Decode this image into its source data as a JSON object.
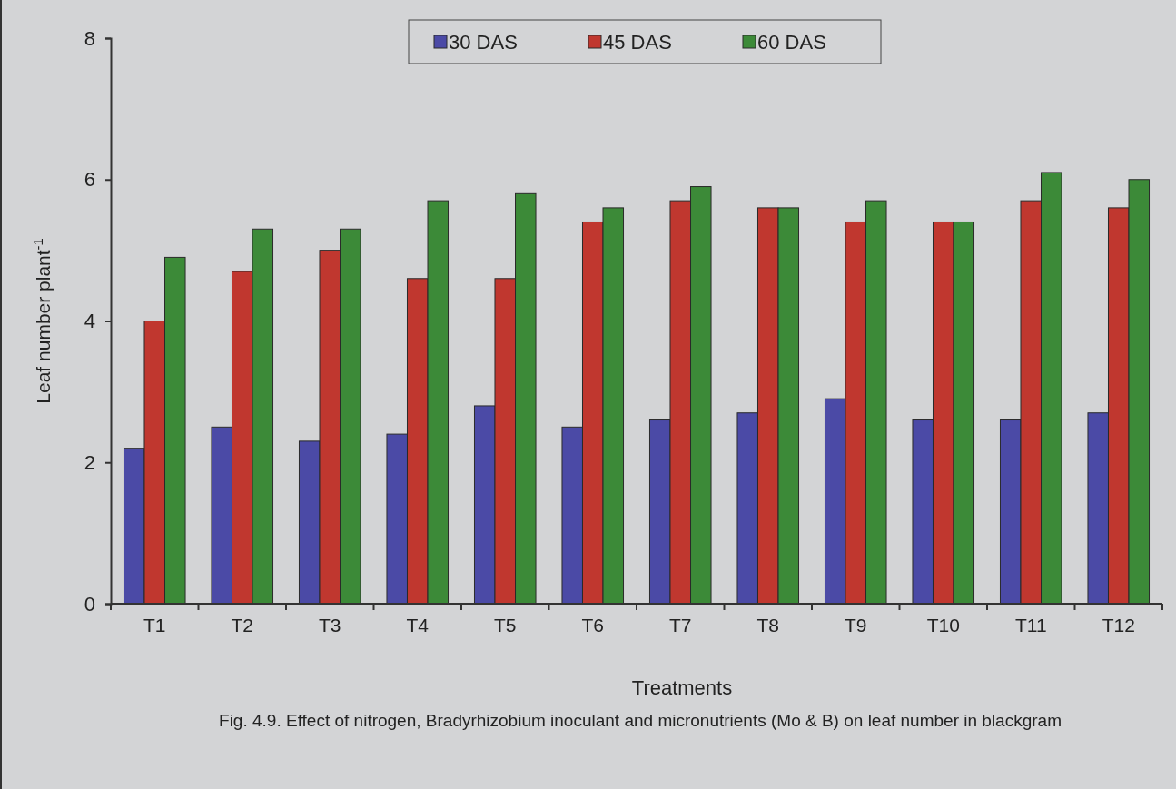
{
  "chart_data": {
    "type": "bar",
    "xlabel": "Treatments",
    "ylabel": "Leaf number plant$^{-1}$",
    "categories": [
      "T1",
      "T2",
      "T3",
      "T4",
      "T5",
      "T6",
      "T7",
      "T8",
      "T9",
      "T10",
      "T11",
      "T12"
    ],
    "series": [
      {
        "name": "30 DAS",
        "color": "#4b4aa6",
        "values": [
          2.2,
          2.5,
          2.3,
          2.4,
          2.8,
          2.5,
          2.6,
          2.7,
          2.9,
          2.6,
          2.6,
          2.7
        ]
      },
      {
        "name": "45 DAS",
        "color": "#c0372f",
        "values": [
          4.0,
          4.7,
          5.0,
          4.6,
          4.6,
          5.4,
          5.7,
          5.6,
          5.4,
          5.4,
          5.7,
          5.6
        ]
      },
      {
        "name": "60 DAS",
        "color": "#3c8a38",
        "values": [
          4.9,
          5.3,
          5.3,
          5.7,
          5.8,
          5.6,
          5.9,
          5.6,
          5.7,
          5.4,
          6.1,
          6.0
        ]
      }
    ],
    "ylim": [
      0,
      8
    ],
    "yticks": [
      0,
      2,
      4,
      6,
      8
    ],
    "grid": false,
    "legend": "top",
    "annotations": [
      "Fig. 4.9. Effect of nitrogen, Bradyrhizobium inoculant and micronutrients (Mo & B) on leaf number in blackgram"
    ]
  }
}
